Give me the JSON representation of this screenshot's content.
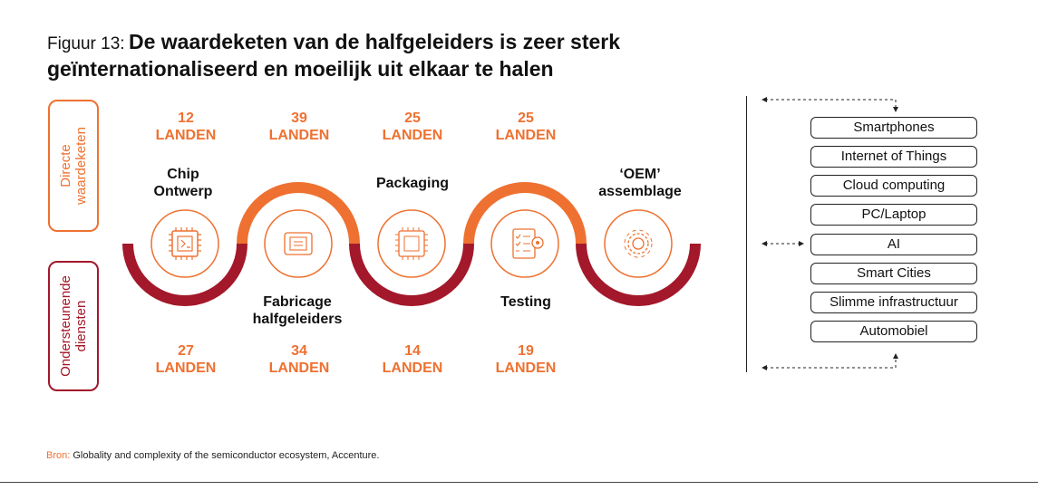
{
  "title": {
    "prefix": "Figuur 13:",
    "main": "De waardeketen van de halfgeleiders is zeer sterk geïnternationaliseerd en moeilijk uit elkaar te halen"
  },
  "side_labels": {
    "direct": [
      "Directe",
      "waardeketen"
    ],
    "support": [
      "Ondersteunende",
      "diensten"
    ]
  },
  "colors": {
    "orange": "#ee7131",
    "red": "#a3182a"
  },
  "steps": [
    {
      "name": [
        "Chip",
        "Ontwerp"
      ],
      "icon": "chip-design-icon",
      "top_count": "12",
      "top_unit": "LANDEN",
      "bottom_count": "27",
      "bottom_unit": "LANDEN"
    },
    {
      "name": [
        "Fabricage",
        "halfgeleiders"
      ],
      "icon": "fabrication-icon",
      "top_count": "39",
      "top_unit": "LANDEN",
      "bottom_count": "34",
      "bottom_unit": "LANDEN"
    },
    {
      "name": [
        "Packaging"
      ],
      "icon": "packaging-chip-icon",
      "top_count": "25",
      "top_unit": "LANDEN",
      "bottom_count": "14",
      "bottom_unit": "LANDEN"
    },
    {
      "name": [
        "Testing"
      ],
      "icon": "testing-clipboard-icon",
      "top_count": "25",
      "top_unit": "LANDEN",
      "bottom_count": "19",
      "bottom_unit": "LANDEN"
    },
    {
      "name": [
        "‘OEM’",
        "assemblage"
      ],
      "icon": "gear-assembly-icon"
    }
  ],
  "applications": [
    "Smartphones",
    "Internet of Things",
    "Cloud computing",
    "PC/Laptop",
    "AI",
    "Smart Cities",
    "Slimme infrastructuur",
    "Automobiel"
  ],
  "source": {
    "label": "Bron:",
    "text": "Globality and complexity of the semiconductor ecosystem, Accenture."
  }
}
